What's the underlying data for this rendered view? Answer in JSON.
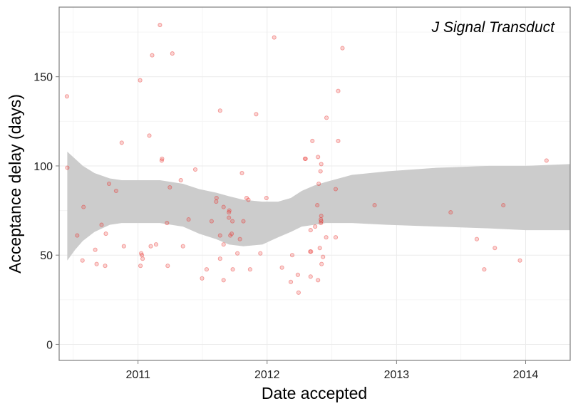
{
  "chart_data": {
    "type": "scatter",
    "title": "J Signal Transduct",
    "xlabel": "Date accepted",
    "ylabel": "Acceptance delay (days)",
    "x_tick_labels": [
      "2011",
      "2012",
      "2013",
      "2014"
    ],
    "y_tick_labels": [
      "0",
      "50",
      "100",
      "150"
    ],
    "y_ticks": [
      0,
      50,
      100,
      150
    ],
    "xlim": [
      "2010-05-23",
      "2014-05-07"
    ],
    "ylim": [
      -9,
      189
    ],
    "grid": true,
    "point_color": "#e8332e",
    "band_color": "#cccccc",
    "points": [
      {
        "x": "2010-06-14",
        "y": 139
      },
      {
        "x": "2010-06-15",
        "y": 99
      },
      {
        "x": "2010-07-13",
        "y": 61
      },
      {
        "x": "2010-07-31",
        "y": 77
      },
      {
        "x": "2010-07-28",
        "y": 47
      },
      {
        "x": "2010-09-02",
        "y": 53
      },
      {
        "x": "2010-09-06",
        "y": 45
      },
      {
        "x": "2010-09-20",
        "y": 67
      },
      {
        "x": "2010-09-30",
        "y": 44
      },
      {
        "x": "2010-10-02",
        "y": 62
      },
      {
        "x": "2010-10-11",
        "y": 90
      },
      {
        "x": "2010-10-31",
        "y": 86
      },
      {
        "x": "2010-11-16",
        "y": 113
      },
      {
        "x": "2010-11-22",
        "y": 55
      },
      {
        "x": "2011-01-07",
        "y": 148
      },
      {
        "x": "2011-01-08",
        "y": 44
      },
      {
        "x": "2011-01-12",
        "y": 50
      },
      {
        "x": "2011-01-10",
        "y": 51
      },
      {
        "x": "2011-01-14",
        "y": 48
      },
      {
        "x": "2011-02-02",
        "y": 117
      },
      {
        "x": "2011-02-10",
        "y": 162
      },
      {
        "x": "2011-02-06",
        "y": 55
      },
      {
        "x": "2011-02-21",
        "y": 56
      },
      {
        "x": "2011-03-04",
        "y": 179
      },
      {
        "x": "2011-03-09",
        "y": 103
      },
      {
        "x": "2011-03-10",
        "y": 104
      },
      {
        "x": "2011-03-24",
        "y": 68
      },
      {
        "x": "2011-03-26",
        "y": 44
      },
      {
        "x": "2011-04-01",
        "y": 88
      },
      {
        "x": "2011-04-08",
        "y": 163
      },
      {
        "x": "2011-05-02",
        "y": 92
      },
      {
        "x": "2011-05-08",
        "y": 55
      },
      {
        "x": "2011-05-24",
        "y": 70
      },
      {
        "x": "2011-06-12",
        "y": 98
      },
      {
        "x": "2011-07-01",
        "y": 37
      },
      {
        "x": "2011-07-14",
        "y": 42
      },
      {
        "x": "2011-07-28",
        "y": 69
      },
      {
        "x": "2011-08-11",
        "y": 82
      },
      {
        "x": "2011-08-10",
        "y": 80
      },
      {
        "x": "2011-08-21",
        "y": 131
      },
      {
        "x": "2011-08-21",
        "y": 61
      },
      {
        "x": "2011-08-21",
        "y": 48
      },
      {
        "x": "2011-08-31",
        "y": 77
      },
      {
        "x": "2011-08-31",
        "y": 56
      },
      {
        "x": "2011-08-31",
        "y": 36
      },
      {
        "x": "2011-09-15",
        "y": 74
      },
      {
        "x": "2011-09-15",
        "y": 71
      },
      {
        "x": "2011-09-16",
        "y": 75
      },
      {
        "x": "2011-09-19",
        "y": 61
      },
      {
        "x": "2011-09-23",
        "y": 62
      },
      {
        "x": "2011-09-25",
        "y": 69
      },
      {
        "x": "2011-09-26",
        "y": 42
      },
      {
        "x": "2011-10-09",
        "y": 51
      },
      {
        "x": "2011-10-16",
        "y": 59
      },
      {
        "x": "2011-10-22",
        "y": 96
      },
      {
        "x": "2011-10-26",
        "y": 69
      },
      {
        "x": "2011-11-04",
        "y": 82
      },
      {
        "x": "2011-11-09",
        "y": 81
      },
      {
        "x": "2011-11-14",
        "y": 42
      },
      {
        "x": "2011-12-01",
        "y": 129
      },
      {
        "x": "2011-12-13",
        "y": 51
      },
      {
        "x": "2011-12-30",
        "y": 82
      },
      {
        "x": "2012-01-21",
        "y": 172
      },
      {
        "x": "2012-02-12",
        "y": 43
      },
      {
        "x": "2012-03-08",
        "y": 35
      },
      {
        "x": "2012-03-12",
        "y": 50
      },
      {
        "x": "2012-03-28",
        "y": 39
      },
      {
        "x": "2012-03-30",
        "y": 29
      },
      {
        "x": "2012-04-17",
        "y": 104
      },
      {
        "x": "2012-04-19",
        "y": 104
      },
      {
        "x": "2012-05-03",
        "y": 64
      },
      {
        "x": "2012-05-02",
        "y": 52
      },
      {
        "x": "2012-05-04",
        "y": 52
      },
      {
        "x": "2012-05-03",
        "y": 38
      },
      {
        "x": "2012-05-08",
        "y": 114
      },
      {
        "x": "2012-05-16",
        "y": 66
      },
      {
        "x": "2012-05-22",
        "y": 78
      },
      {
        "x": "2012-05-24",
        "y": 105
      },
      {
        "x": "2012-05-26",
        "y": 90
      },
      {
        "x": "2012-05-24",
        "y": 36
      },
      {
        "x": "2012-05-29",
        "y": 54
      },
      {
        "x": "2012-05-31",
        "y": 97
      },
      {
        "x": "2012-06-02",
        "y": 101
      },
      {
        "x": "2012-06-02",
        "y": 72
      },
      {
        "x": "2012-06-01",
        "y": 70
      },
      {
        "x": "2012-06-02",
        "y": 69
      },
      {
        "x": "2012-06-01",
        "y": 68
      },
      {
        "x": "2012-06-03",
        "y": 45
      },
      {
        "x": "2012-06-07",
        "y": 49
      },
      {
        "x": "2012-06-16",
        "y": 60
      },
      {
        "x": "2012-06-17",
        "y": 127
      },
      {
        "x": "2012-07-13",
        "y": 87
      },
      {
        "x": "2012-07-13",
        "y": 60
      },
      {
        "x": "2012-07-20",
        "y": 142
      },
      {
        "x": "2012-07-20",
        "y": 114
      },
      {
        "x": "2012-08-01",
        "y": 166
      },
      {
        "x": "2012-10-31",
        "y": 78
      },
      {
        "x": "2013-06-03",
        "y": 74
      },
      {
        "x": "2013-08-16",
        "y": 59
      },
      {
        "x": "2013-09-06",
        "y": 42
      },
      {
        "x": "2013-10-06",
        "y": 54
      },
      {
        "x": "2013-10-30",
        "y": 78
      },
      {
        "x": "2013-12-16",
        "y": 47
      },
      {
        "x": "2014-03-01",
        "y": 103
      }
    ],
    "confidence_band": [
      {
        "x": "2010-06-15",
        "lower": 47,
        "upper": 108
      },
      {
        "x": "2010-07-07",
        "lower": 53,
        "upper": 104
      },
      {
        "x": "2010-07-29",
        "lower": 58,
        "upper": 100
      },
      {
        "x": "2010-08-31",
        "lower": 63,
        "upper": 96
      },
      {
        "x": "2010-10-13",
        "lower": 67,
        "upper": 93
      },
      {
        "x": "2010-11-16",
        "lower": 68,
        "upper": 92
      },
      {
        "x": "2010-12-24",
        "lower": 68,
        "upper": 92
      },
      {
        "x": "2011-03-04",
        "lower": 68,
        "upper": 92
      },
      {
        "x": "2011-05-08",
        "lower": 66,
        "upper": 90
      },
      {
        "x": "2011-06-23",
        "lower": 62,
        "upper": 87
      },
      {
        "x": "2011-08-10",
        "lower": 59,
        "upper": 85
      },
      {
        "x": "2011-09-15",
        "lower": 56,
        "upper": 83
      },
      {
        "x": "2011-10-26",
        "lower": 55,
        "upper": 81
      },
      {
        "x": "2011-12-19",
        "lower": 56,
        "upper": 80
      },
      {
        "x": "2012-02-01",
        "lower": 60,
        "upper": 80
      },
      {
        "x": "2012-03-08",
        "lower": 63,
        "upper": 82
      },
      {
        "x": "2012-04-08",
        "lower": 66,
        "upper": 86
      },
      {
        "x": "2012-05-13",
        "lower": 67,
        "upper": 89
      },
      {
        "x": "2012-06-15",
        "lower": 68,
        "upper": 91
      },
      {
        "x": "2012-08-28",
        "lower": 68,
        "upper": 95
      },
      {
        "x": "2012-12-06",
        "lower": 67,
        "upper": 97
      },
      {
        "x": "2013-04-26",
        "lower": 66,
        "upper": 99
      },
      {
        "x": "2013-09-19",
        "lower": 65,
        "upper": 100
      },
      {
        "x": "2014-01-01",
        "lower": 64,
        "upper": 100
      },
      {
        "x": "2014-05-07",
        "lower": 64,
        "upper": 101
      }
    ]
  }
}
